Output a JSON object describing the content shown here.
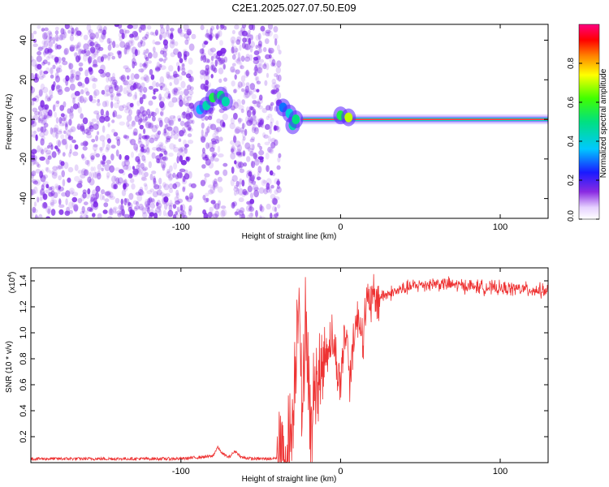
{
  "page_title": "C2E1.2025.027.07.50.E09",
  "colors": {
    "snr_line": "#ee3333",
    "spectrogram_scatter": "#7a22e6",
    "background": "#ffffff"
  },
  "chart_data": [
    {
      "type": "heatmap",
      "title": "C2E1.2025.027.07.50.E09",
      "xlabel": "Height of straight line (km)",
      "ylabel": "Frequency (Hz)",
      "xlim": [
        -194,
        130
      ],
      "ylim": [
        -50,
        48
      ],
      "x_ticks": [
        -100,
        0,
        100
      ],
      "x_tick_labels": [
        "-100",
        "0",
        "100"
      ],
      "y_ticks": [
        -40,
        -20,
        0,
        20,
        40
      ],
      "y_tick_labels": [
        "-40",
        "-20",
        "0",
        "20",
        "40"
      ],
      "grid": false,
      "colorbar": {
        "label": "Normalized spectral amplitude",
        "range": [
          0,
          1
        ],
        "ticks": [
          0.0,
          0.2,
          0.4,
          0.6,
          0.8
        ],
        "tick_labels": [
          "0.0",
          "0.2",
          "0.4",
          "0.6",
          "0.8"
        ],
        "colormap": "rainbow"
      },
      "features": {
        "noise_regions_km": [
          [
            -194,
            -92
          ],
          [
            -87,
            -72
          ],
          [
            -68,
            -38
          ]
        ],
        "main_line_start_km": -25,
        "main_line_frequency_hz": 0,
        "blobs": [
          {
            "x": -88,
            "y": 5,
            "amp": 0.35
          },
          {
            "x": -84,
            "y": 7,
            "amp": 0.45
          },
          {
            "x": -80,
            "y": 11,
            "amp": 0.55
          },
          {
            "x": -75,
            "y": 12,
            "amp": 0.5
          },
          {
            "x": -72,
            "y": 9,
            "amp": 0.45
          },
          {
            "x": -36,
            "y": 6,
            "amp": 0.3
          },
          {
            "x": -32,
            "y": 3,
            "amp": 0.4
          },
          {
            "x": -30,
            "y": -3,
            "amp": 0.45
          },
          {
            "x": -28,
            "y": 0,
            "amp": 0.5
          },
          {
            "x": 0,
            "y": 2,
            "amp": 0.55
          },
          {
            "x": 5,
            "y": 1,
            "amp": 0.7
          }
        ]
      }
    },
    {
      "type": "line",
      "title": "",
      "xlabel": "Height of straight line (km)",
      "ylabel": "SNR (10 * v/v)",
      "scale_label": "(x10",
      "scale_exponent": "4",
      "scale_suffix": ")",
      "xlim": [
        -194,
        130
      ],
      "ylim": [
        0,
        1.5
      ],
      "x_ticks": [
        -100,
        0,
        100
      ],
      "x_tick_labels": [
        "-100",
        "0",
        "100"
      ],
      "y_ticks": [
        0.2,
        0.4,
        0.6,
        0.8,
        1.0,
        1.2,
        1.4
      ],
      "y_tick_labels": [
        "0.2",
        "0.4",
        "0.6",
        "0.8",
        "1.0",
        "1.2",
        "1.4"
      ],
      "grid": false,
      "series": [
        {
          "name": "",
          "x": [
            -194,
            -150,
            -100,
            -80,
            -77,
            -74,
            -70,
            -66,
            -62,
            -55,
            -45,
            -35,
            -30,
            -26,
            -24,
            -22,
            -20,
            -18,
            -16,
            -14,
            -12,
            -10,
            -8,
            -6,
            -4,
            -2,
            0,
            2,
            4,
            6,
            8,
            10,
            12,
            14,
            16,
            18,
            20,
            25,
            30,
            40,
            50,
            60,
            70,
            80,
            90,
            100,
            110,
            120,
            130
          ],
          "y": [
            0.03,
            0.03,
            0.03,
            0.05,
            0.12,
            0.07,
            0.04,
            0.09,
            0.04,
            0.03,
            0.03,
            0.04,
            0.3,
            1.45,
            0.15,
            1.3,
            0.5,
            0.2,
            0.7,
            0.62,
            0.72,
            0.8,
            0.9,
            0.95,
            0.9,
            0.7,
            0.6,
            0.95,
            1.0,
            0.6,
            1.0,
            1.08,
            1.1,
            1.0,
            1.2,
            1.22,
            1.25,
            1.28,
            1.3,
            1.34,
            1.37,
            1.38,
            1.37,
            1.36,
            1.35,
            1.34,
            1.34,
            1.33,
            1.32
          ]
        }
      ]
    }
  ]
}
